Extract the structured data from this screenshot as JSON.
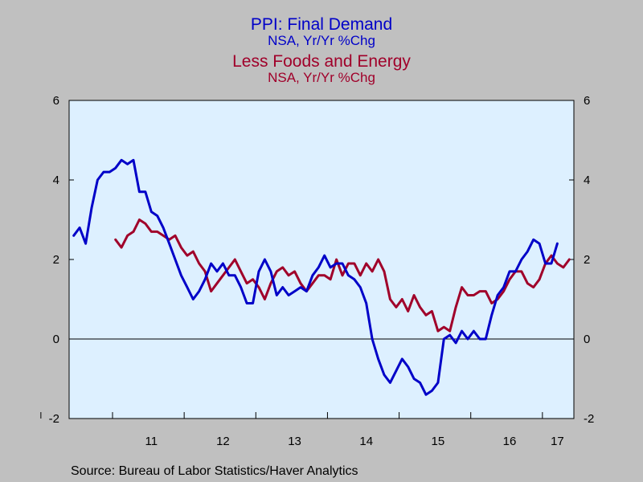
{
  "titles": [
    {
      "title": "PPI: Final Demand",
      "subtitle": "NSA, Yr/Yr %Chg",
      "color": "#0000C8"
    },
    {
      "title": "Less Foods and Energy",
      "subtitle": "NSA, Yr/Yr %Chg",
      "color": "#A0002A"
    }
  ],
  "source": "Source:  Bureau of Labor Statistics/Haver Analytics",
  "chart_data": {
    "type": "line",
    "x_axis": {
      "type": "month",
      "start_month": "2010-06",
      "tick_labels": [
        "11",
        "12",
        "13",
        "14",
        "15",
        "16",
        "17"
      ]
    },
    "y_axis": {
      "min": -2,
      "max": 6,
      "ticks": [
        -2,
        0,
        2,
        4,
        6
      ],
      "zero_line": true,
      "dual_axis": true
    },
    "grid": false,
    "colors": {
      "plot_background": "#DDF0FF",
      "page_background": "#C0C0C0",
      "axis": "#000000"
    },
    "series": [
      {
        "name": "PPI: Final Demand",
        "color": "#0000C8",
        "start_month": "2010-06",
        "values": [
          2.6,
          2.8,
          2.4,
          3.3,
          4.0,
          4.2,
          4.2,
          4.3,
          4.5,
          4.4,
          4.5,
          3.7,
          3.7,
          3.2,
          3.1,
          2.8,
          2.4,
          2.0,
          1.6,
          1.3,
          1.0,
          1.2,
          1.5,
          1.9,
          1.7,
          1.9,
          1.6,
          1.6,
          1.3,
          0.9,
          0.9,
          1.7,
          2.0,
          1.7,
          1.1,
          1.3,
          1.1,
          1.2,
          1.3,
          1.2,
          1.6,
          1.8,
          2.1,
          1.8,
          1.9,
          1.9,
          1.6,
          1.5,
          1.3,
          0.9,
          0.0,
          -0.5,
          -0.9,
          -1.1,
          -0.8,
          -0.5,
          -0.7,
          -1.0,
          -1.1,
          -1.4,
          -1.3,
          -1.1,
          0.0,
          0.1,
          -0.1,
          0.2,
          0.0,
          0.2,
          0.0,
          0.0,
          0.6,
          1.1,
          1.3,
          1.7,
          1.7,
          2.0,
          2.2,
          2.5,
          2.4,
          1.9,
          1.9,
          2.4
        ]
      },
      {
        "name": "Less Foods and Energy",
        "color": "#A0002A",
        "start_month": "2011-01",
        "values": [
          2.5,
          2.3,
          2.6,
          2.7,
          3.0,
          2.9,
          2.7,
          2.7,
          2.6,
          2.5,
          2.6,
          2.3,
          2.1,
          2.2,
          1.9,
          1.7,
          1.2,
          1.4,
          1.6,
          1.8,
          2.0,
          1.7,
          1.4,
          1.5,
          1.3,
          1.0,
          1.4,
          1.7,
          1.8,
          1.6,
          1.7,
          1.4,
          1.2,
          1.4,
          1.6,
          1.6,
          1.5,
          2.0,
          1.6,
          1.9,
          1.9,
          1.6,
          1.9,
          1.7,
          2.0,
          1.7,
          1.0,
          0.8,
          1.0,
          0.7,
          1.1,
          0.8,
          0.6,
          0.7,
          0.2,
          0.3,
          0.2,
          0.8,
          1.3,
          1.1,
          1.1,
          1.2,
          1.2,
          0.9,
          1.0,
          1.2,
          1.5,
          1.7,
          1.7,
          1.4,
          1.3,
          1.5,
          1.9,
          2.1,
          1.9,
          1.8,
          2.0
        ]
      }
    ]
  }
}
